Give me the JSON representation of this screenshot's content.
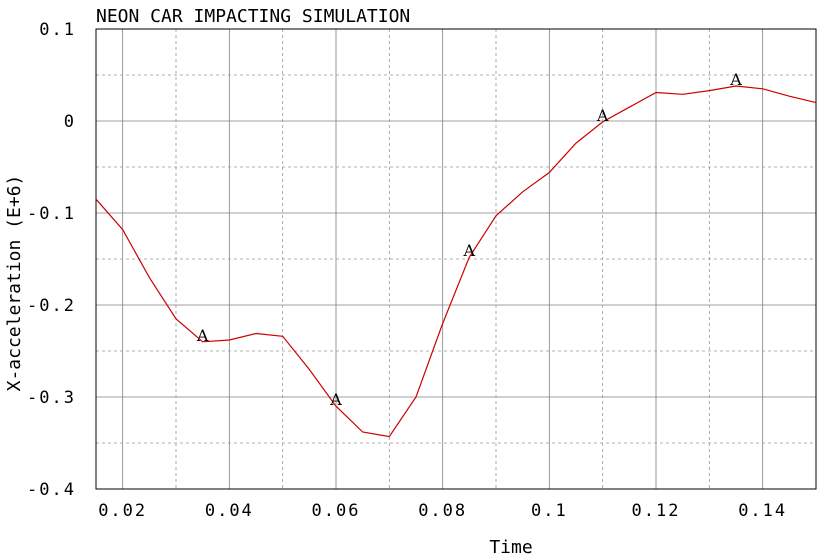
{
  "chart_data": {
    "type": "line",
    "title": "NEON CAR IMPACTING SIMULATION",
    "xlabel": "Time",
    "ylabel": "X-acceleration (E+6)",
    "xlim": [
      0.015,
      0.15
    ],
    "ylim": [
      -0.4,
      0.1
    ],
    "grid": true,
    "x_ticks": [
      0.02,
      0.04,
      0.06,
      0.08,
      0.1,
      0.12,
      0.14
    ],
    "x_tick_labels": [
      "0.02",
      "0.04",
      "0.06",
      "0.08",
      "0.1",
      "0.12",
      "0.14"
    ],
    "y_ticks": [
      0.1,
      0,
      -0.1,
      -0.2,
      -0.3,
      -0.4
    ],
    "y_tick_labels": [
      "0.1",
      "0",
      "-0.1",
      "-0.2",
      "-0.3",
      "-0.4"
    ],
    "series": [
      {
        "name": "A",
        "color": "#cc0000",
        "x": [
          0.015,
          0.02,
          0.025,
          0.03,
          0.035,
          0.04,
          0.045,
          0.05,
          0.055,
          0.06,
          0.065,
          0.07,
          0.075,
          0.08,
          0.085,
          0.09,
          0.095,
          0.1,
          0.105,
          0.11,
          0.115,
          0.12,
          0.125,
          0.13,
          0.135,
          0.14,
          0.145,
          0.15
        ],
        "y": [
          -0.085,
          -0.118,
          -0.17,
          -0.215,
          -0.24,
          -0.238,
          -0.231,
          -0.234,
          -0.27,
          -0.31,
          -0.338,
          -0.343,
          -0.3,
          -0.22,
          -0.148,
          -0.103,
          -0.077,
          -0.056,
          -0.024,
          -0.001,
          0.015,
          0.031,
          0.029,
          0.033,
          0.038,
          0.035,
          0.027,
          0.02
        ]
      }
    ],
    "markers": [
      {
        "label": "A",
        "x": 0.035,
        "y": -0.24
      },
      {
        "label": "A",
        "x": 0.06,
        "y": -0.31
      },
      {
        "label": "A",
        "x": 0.085,
        "y": -0.148
      },
      {
        "label": "A",
        "x": 0.11,
        "y": -0.001
      },
      {
        "label": "A",
        "x": 0.135,
        "y": 0.038
      }
    ]
  }
}
